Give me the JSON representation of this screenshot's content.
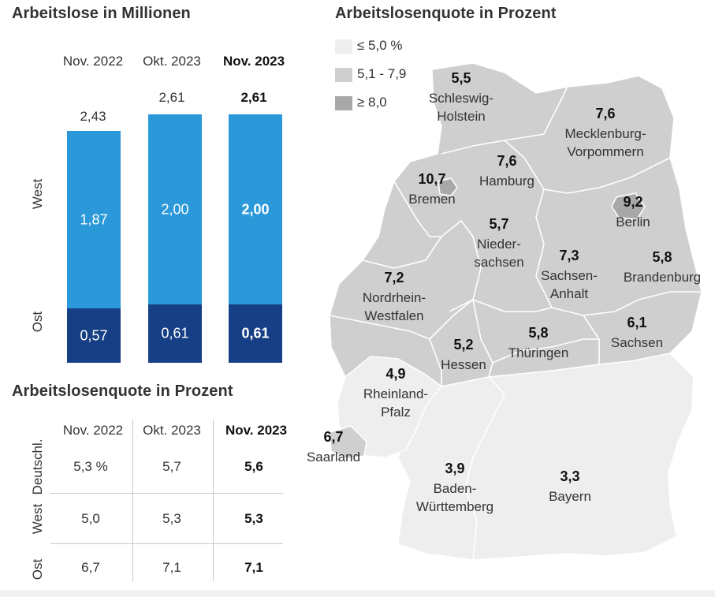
{
  "left_title": "Arbeitslose in Millionen",
  "table_title": "Arbeitslosenquote in Prozent",
  "map_title": "Arbeitslosenquote in Prozent",
  "row_labels": {
    "west": "West",
    "ost": "Ost"
  },
  "chart_data": [
    {
      "type": "bar",
      "stacked": true,
      "categories": [
        "Nov. 2022",
        "Okt. 2023",
        "Nov. 2023"
      ],
      "totals": [
        "2,43",
        "2,61",
        "2,61"
      ],
      "series": [
        {
          "name": "West",
          "values": [
            1.87,
            2.0,
            2.0
          ],
          "labels": [
            "1,87",
            "2,00",
            "2,00"
          ],
          "color": "#2a98d9"
        },
        {
          "name": "Ost",
          "values": [
            0.57,
            0.61,
            0.61
          ],
          "labels": [
            "0,57",
            "0,61",
            "0,61"
          ],
          "color": "#163f86"
        }
      ],
      "highlight_category": "Nov. 2023"
    },
    {
      "type": "table",
      "columns": [
        "Nov. 2022",
        "Okt. 2023",
        "Nov. 2023"
      ],
      "rows": [
        {
          "label": "Deutschl.",
          "values": [
            "5,3 %",
            "5,7",
            "5,6"
          ]
        },
        {
          "label": "West",
          "values": [
            "5,0",
            "5,3",
            "5,3"
          ]
        },
        {
          "label": "Ost",
          "values": [
            "6,7",
            "7,1",
            "7,1"
          ]
        }
      ]
    },
    {
      "type": "map",
      "legend": [
        {
          "label": "≤ 5,0 %",
          "color": "#eeeeee"
        },
        {
          "label": "5,1 - 7,9",
          "color": "#cfcfcf"
        },
        {
          "label": "≥ 8,0",
          "color": "#a8a8a8"
        }
      ],
      "states": [
        {
          "name": "Schleswig-Holstein",
          "lines": [
            "Schleswig-",
            "Holstein"
          ],
          "value": "5,5"
        },
        {
          "name": "Mecklenburg-Vorpommern",
          "lines": [
            "Mecklenburg-",
            "Vorpommern"
          ],
          "value": "7,6"
        },
        {
          "name": "Hamburg",
          "lines": [
            "Hamburg"
          ],
          "value": "7,6"
        },
        {
          "name": "Bremen",
          "lines": [
            "Bremen"
          ],
          "value": "10,7"
        },
        {
          "name": "Berlin",
          "lines": [
            "Berlin"
          ],
          "value": "9,2"
        },
        {
          "name": "Niedersachsen",
          "lines": [
            "Nieder-",
            "sachsen"
          ],
          "value": "5,7"
        },
        {
          "name": "Brandenburg",
          "lines": [
            "Brandenburg"
          ],
          "value": "5,8"
        },
        {
          "name": "Sachsen-Anhalt",
          "lines": [
            "Sachsen-",
            "Anhalt"
          ],
          "value": "7,3"
        },
        {
          "name": "Nordrhein-Westfalen",
          "lines": [
            "Nordrhein-",
            "Westfalen"
          ],
          "value": "7,2"
        },
        {
          "name": "Sachsen",
          "lines": [
            "Sachsen"
          ],
          "value": "6,1"
        },
        {
          "name": "Hessen",
          "lines": [
            "Hessen"
          ],
          "value": "5,2"
        },
        {
          "name": "Thüringen",
          "lines": [
            "Thüringen"
          ],
          "value": "5,8"
        },
        {
          "name": "Rheinland-Pfalz",
          "lines": [
            "Rheinland-",
            "Pfalz"
          ],
          "value": "4,9"
        },
        {
          "name": "Saarland",
          "lines": [
            "Saarland"
          ],
          "value": "6,7"
        },
        {
          "name": "Baden-Württemberg",
          "lines": [
            "Baden-",
            "Württemberg"
          ],
          "value": "3,9"
        },
        {
          "name": "Bayern",
          "lines": [
            "Bayern"
          ],
          "value": "3,3"
        }
      ]
    }
  ]
}
